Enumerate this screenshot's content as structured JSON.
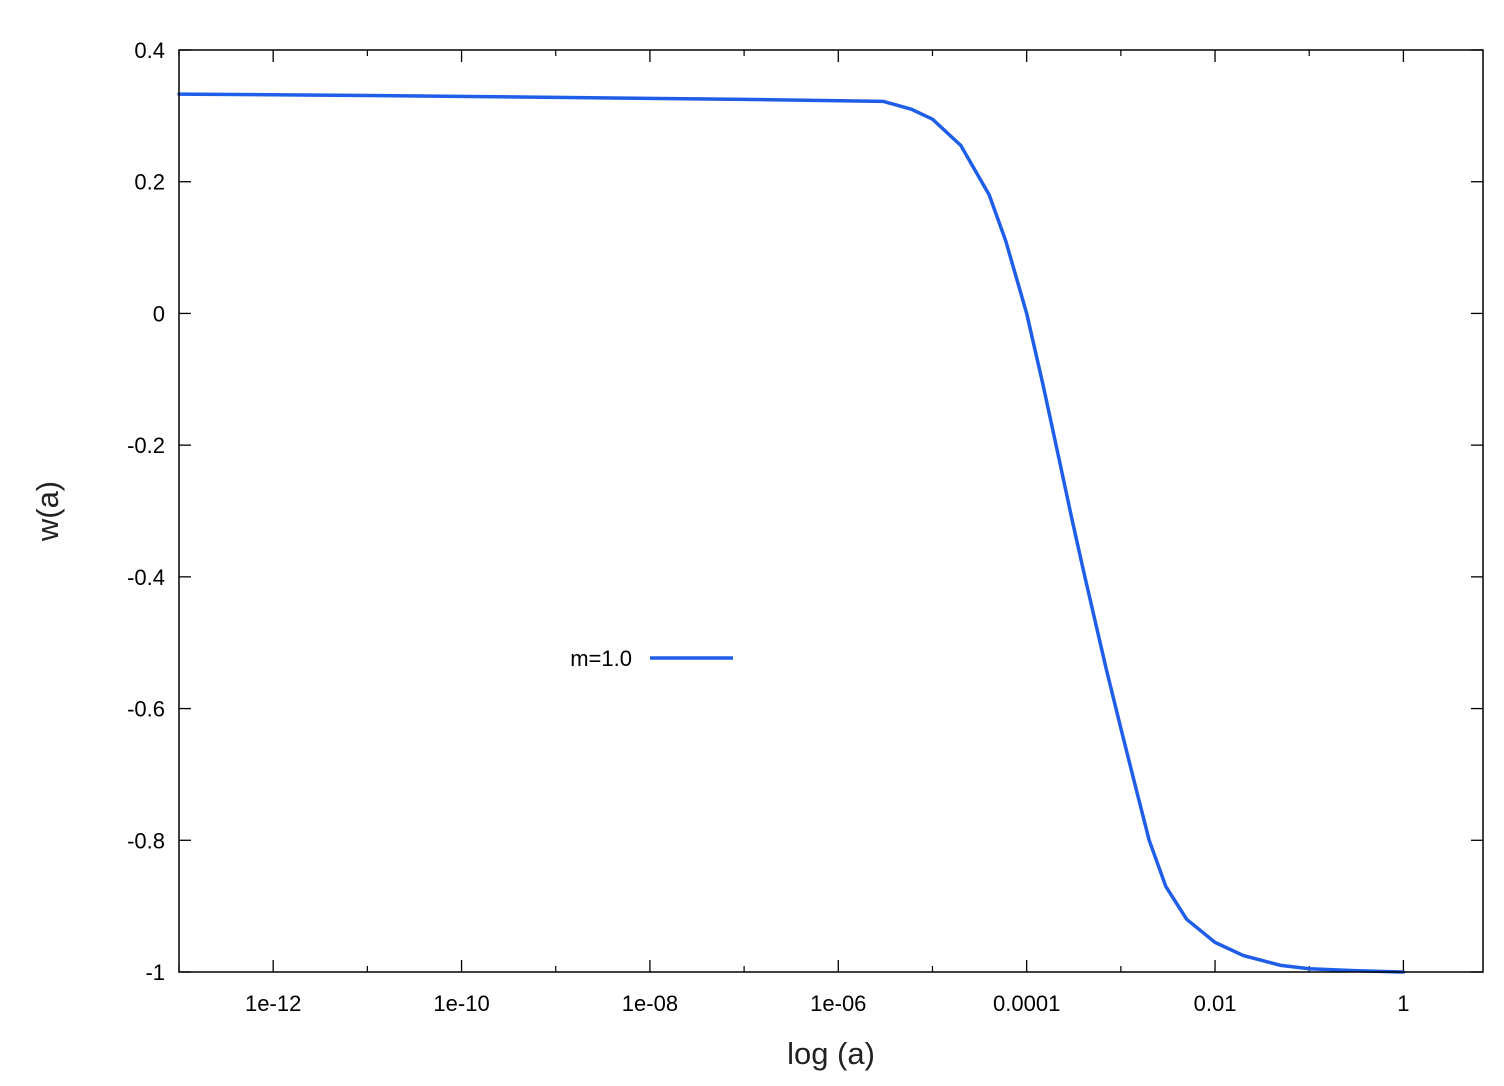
{
  "chart_data": {
    "type": "line",
    "xlabel": "log (a)",
    "ylabel": "w(a)",
    "xscale": "log10",
    "xlim": [
      1e-13,
      7
    ],
    "ylim": [
      -1,
      0.4
    ],
    "grid": false,
    "legend_position": "center-left",
    "x_ticks": [
      {
        "value": 1e-12,
        "label": "1e-12"
      },
      {
        "value": 1e-10,
        "label": "1e-10"
      },
      {
        "value": 1e-08,
        "label": "1e-08"
      },
      {
        "value": 1e-06,
        "label": "1e-06"
      },
      {
        "value": 0.0001,
        "label": "0.0001"
      },
      {
        "value": 0.01,
        "label": "0.01"
      },
      {
        "value": 1,
        "label": "1"
      }
    ],
    "y_ticks": [
      {
        "value": 0.4,
        "label": "0.4"
      },
      {
        "value": 0.2,
        "label": "0.2"
      },
      {
        "value": 0,
        "label": "0"
      },
      {
        "value": -0.2,
        "label": "-0.2"
      },
      {
        "value": -0.4,
        "label": "-0.4"
      },
      {
        "value": -0.6,
        "label": "-0.6"
      },
      {
        "value": -0.8,
        "label": "-0.8"
      },
      {
        "value": -1,
        "label": "-1"
      }
    ],
    "series": [
      {
        "name": "m=1.0",
        "color": "#1f5ee8",
        "x": [
          1e-13,
          1e-11,
          1e-09,
          1e-07,
          3e-06,
          6e-06,
          1e-05,
          2e-05,
          4e-05,
          6e-05,
          0.0001,
          0.00015,
          0.00022,
          0.0003,
          0.0004,
          0.0005,
          0.0007,
          0.001,
          0.0015,
          0.002,
          0.003,
          0.005,
          0.01,
          0.02,
          0.05,
          0.1,
          0.3,
          1
        ],
        "y": [
          0.333,
          0.331,
          0.328,
          0.325,
          0.322,
          0.31,
          0.295,
          0.255,
          0.18,
          0.11,
          0.0,
          -0.11,
          -0.22,
          -0.31,
          -0.39,
          -0.45,
          -0.54,
          -0.63,
          -0.73,
          -0.8,
          -0.87,
          -0.92,
          -0.955,
          -0.975,
          -0.99,
          -0.995,
          -0.998,
          -1.0
        ]
      }
    ]
  }
}
